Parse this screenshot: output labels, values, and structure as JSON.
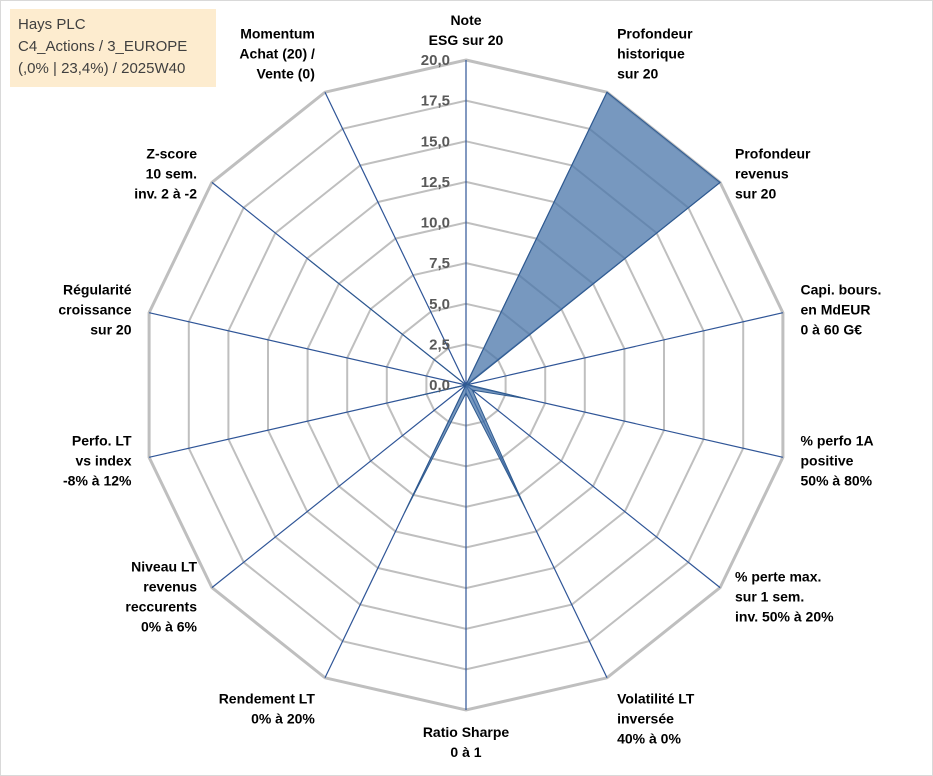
{
  "info_box": {
    "line1": "Hays PLC",
    "line2": "C4_Actions / 3_EUROPE",
    "line3": "(,0% | 23,4%) / 2025W40"
  },
  "chart_data": {
    "type": "radar",
    "title": "",
    "range": [
      0,
      20
    ],
    "ticks": [
      "0,0",
      "2,5",
      "5,0",
      "7,5",
      "10,0",
      "12,5",
      "15,0",
      "17,5",
      "20,0"
    ],
    "categories": [
      "Note ESG sur 20",
      "Profondeur historique sur 20",
      "Profondeur revenus sur 20",
      "Capi. bours. en MdEUR 0 à 60 G€",
      "% perfo 1A positive 50% à 80%",
      "% perte max. sur 1 sem. inv. 50% à 20%",
      "Volatilité LT inversée 40% à 0%",
      "Ratio Sharpe 0 à 1",
      "Rendement LT 0% à 20%",
      "Niveau LT revenus reccurents 0% à 6%",
      "Perfo. LT vs index -8% à 12%",
      "Régularité croissance sur 20",
      "Z-score 10 sem. inv. 2 à -2",
      "Momentum Achat (20) / Vente (0)"
    ],
    "labels": [
      [
        "Note",
        "ESG sur 20"
      ],
      [
        "Profondeur",
        "historique",
        "sur 20"
      ],
      [
        "Profondeur",
        "revenus",
        "sur 20"
      ],
      [
        "Capi. bours.",
        "en MdEUR",
        "0 à 60 G€"
      ],
      [
        "% perfo 1A",
        "positive",
        "50% à 80%"
      ],
      [
        "% perte max.",
        "sur 1 sem.",
        "inv. 50% à 20%"
      ],
      [
        "Volatilité LT",
        "inversée",
        "40% à 0%"
      ],
      [
        "Ratio Sharpe",
        "0 à 1"
      ],
      [
        "Rendement LT",
        "0% à 20%"
      ],
      [
        "Niveau LT",
        "revenus",
        "reccurents",
        "0% à 6%"
      ],
      [
        "Perfo. LT",
        "vs index",
        "-8% à 12%"
      ],
      [
        "Régularité",
        "croissance",
        "sur 20"
      ],
      [
        "Z-score",
        "10 sem.",
        "inv. 2 à -2"
      ],
      [
        "Momentum",
        "Achat (20) /",
        "Vente (0)"
      ]
    ],
    "series": [
      {
        "name": "Hays PLC",
        "values": [
          0.0,
          20.0,
          20.0,
          0.1,
          3.8,
          0.5,
          8.4,
          0.5,
          8.7,
          0.0,
          4.0,
          0.0,
          12.3,
          0.0
        ]
      }
    ],
    "colors": {
      "fill": "#4a76aa",
      "stroke": "#2f5a8f",
      "grid": "#bfbfbf",
      "spoke": "#2f5597"
    }
  }
}
